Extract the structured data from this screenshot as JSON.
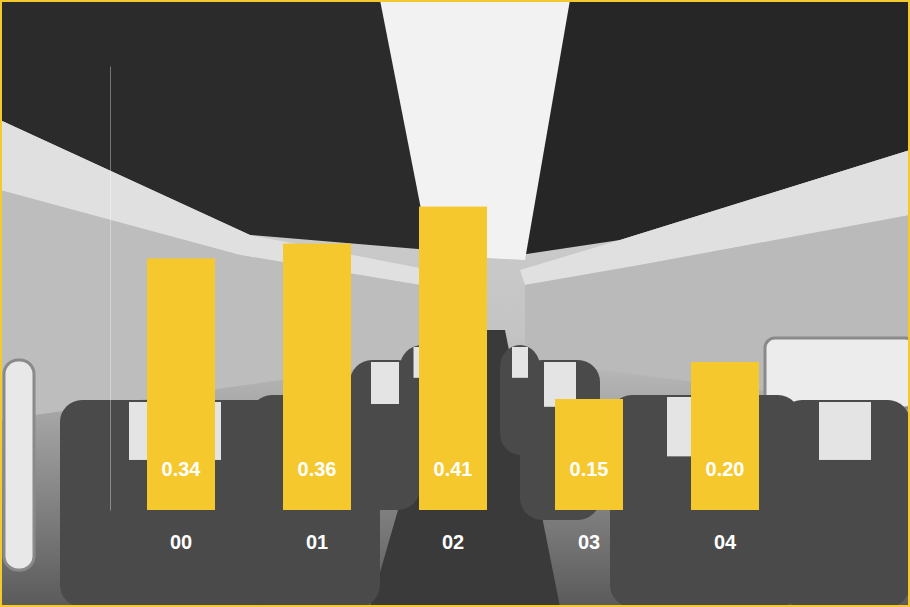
{
  "chart_data": {
    "type": "bar",
    "categories": [
      "00",
      "01",
      "02",
      "03",
      "04"
    ],
    "values": [
      0.34,
      0.36,
      0.41,
      0.15,
      0.2
    ],
    "color": "#f5c82e",
    "ylim": [
      0,
      0.6
    ],
    "data_labels": true,
    "tick_labels": false,
    "grid": false
  }
}
